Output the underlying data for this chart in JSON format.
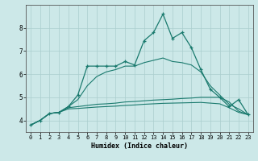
{
  "x": [
    0,
    1,
    2,
    3,
    4,
    5,
    6,
    7,
    8,
    9,
    10,
    11,
    12,
    13,
    14,
    15,
    16,
    17,
    18,
    19,
    20,
    21,
    22,
    23
  ],
  "line1": [
    3.8,
    4.0,
    4.3,
    4.35,
    4.6,
    5.1,
    6.35,
    6.35,
    6.35,
    6.35,
    6.55,
    6.4,
    7.45,
    7.8,
    8.6,
    7.55,
    7.8,
    7.15,
    6.2,
    5.35,
    5.0,
    4.6,
    4.9,
    4.25
  ],
  "line2": [
    3.8,
    4.0,
    4.3,
    4.35,
    4.6,
    4.9,
    5.5,
    5.9,
    6.1,
    6.2,
    6.35,
    6.35,
    6.5,
    6.6,
    6.7,
    6.55,
    6.5,
    6.4,
    6.1,
    5.5,
    5.1,
    4.7,
    4.5,
    4.25
  ],
  "line3": [
    3.8,
    4.0,
    4.3,
    4.35,
    4.55,
    4.6,
    4.65,
    4.7,
    4.72,
    4.75,
    4.8,
    4.82,
    4.85,
    4.88,
    4.9,
    4.92,
    4.95,
    4.97,
    5.0,
    5.0,
    5.0,
    4.8,
    4.4,
    4.25
  ],
  "line4": [
    3.8,
    4.0,
    4.3,
    4.35,
    4.5,
    4.52,
    4.55,
    4.58,
    4.6,
    4.62,
    4.65,
    4.67,
    4.7,
    4.72,
    4.74,
    4.75,
    4.76,
    4.77,
    4.78,
    4.75,
    4.72,
    4.55,
    4.35,
    4.25
  ],
  "bg_color": "#cce8e8",
  "grid_color": "#aacece",
  "line_color": "#1a7a6e",
  "xlabel": "Humidex (Indice chaleur)",
  "ylim": [
    3.5,
    9.0
  ],
  "xlim_min": -0.5,
  "xlim_max": 23.5,
  "yticks": [
    4,
    5,
    6,
    7,
    8
  ],
  "xticks": [
    0,
    1,
    2,
    3,
    4,
    5,
    6,
    7,
    8,
    9,
    10,
    11,
    12,
    13,
    14,
    15,
    16,
    17,
    18,
    19,
    20,
    21,
    22,
    23
  ]
}
